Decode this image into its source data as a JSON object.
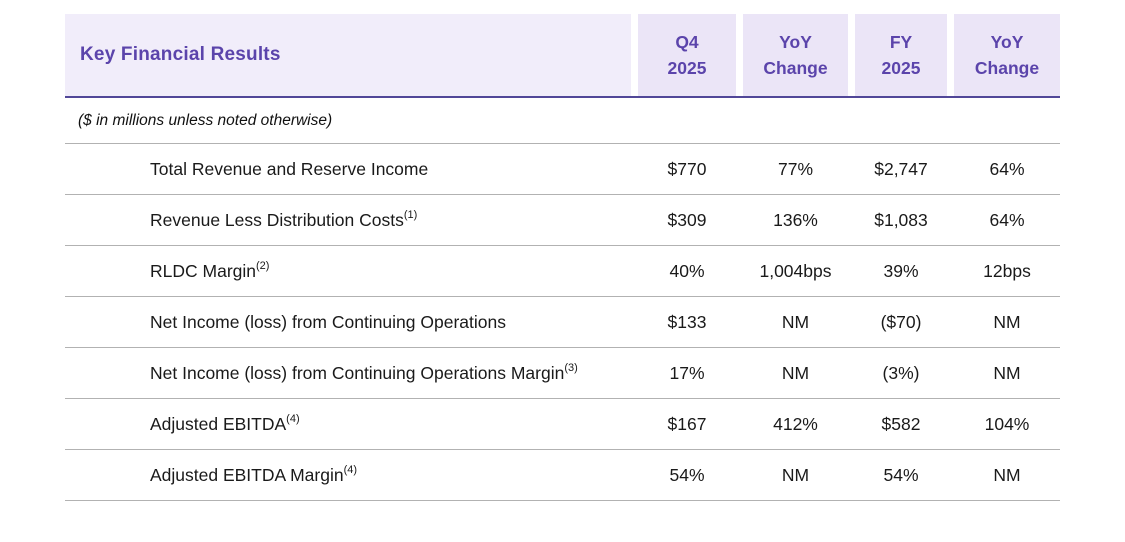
{
  "table": {
    "title": "Key Financial Results",
    "note": "($ in millions unless noted otherwise)",
    "columns": [
      {
        "line1": "Q4",
        "line2": "2025"
      },
      {
        "line1": "YoY",
        "line2": "Change"
      },
      {
        "line1": "FY",
        "line2": "2025"
      },
      {
        "line1": "YoY",
        "line2": "Change"
      }
    ],
    "rows": [
      {
        "label": "Total Revenue and Reserve Income",
        "sup": "",
        "values": [
          "$770",
          "77%",
          "$2,747",
          "64%"
        ]
      },
      {
        "label": "Revenue Less Distribution Costs",
        "sup": "(1)",
        "values": [
          "$309",
          "136%",
          "$1,083",
          "64%"
        ]
      },
      {
        "label": "RLDC Margin",
        "sup": "(2)",
        "values": [
          "40%",
          "1,004bps",
          "39%",
          "12bps"
        ]
      },
      {
        "label": "Net Income (loss) from Continuing Operations",
        "sup": "",
        "values": [
          "$133",
          "NM",
          "($70)",
          "NM"
        ]
      },
      {
        "label": "Net Income (loss) from Continuing Operations Margin",
        "sup": "(3)",
        "values": [
          "17%",
          "NM",
          "(3%)",
          "NM"
        ]
      },
      {
        "label": "Adjusted EBITDA",
        "sup": "(4)",
        "values": [
          "$167",
          "412%",
          "$582",
          "104%"
        ]
      },
      {
        "label": "Adjusted EBITDA Margin",
        "sup": "(4)",
        "values": [
          "54%",
          "NM",
          "54%",
          "NM"
        ]
      }
    ]
  },
  "colors": {
    "accent_purple_text": "#5B44AB",
    "header_underline": "#514798",
    "header_title_bg": "#F1EDFA",
    "header_column_bg": "#EBE5F7",
    "row_divider": "#B2B2B2",
    "body_text": "#1A1A1A"
  }
}
